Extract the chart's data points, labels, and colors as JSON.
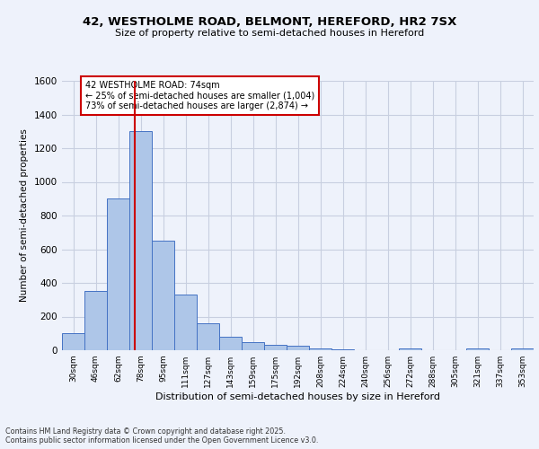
{
  "title": "42, WESTHOLME ROAD, BELMONT, HEREFORD, HR2 7SX",
  "subtitle": "Size of property relative to semi-detached houses in Hereford",
  "xlabel": "Distribution of semi-detached houses by size in Hereford",
  "ylabel": "Number of semi-detached properties",
  "bar_labels": [
    "30sqm",
    "46sqm",
    "62sqm",
    "78sqm",
    "95sqm",
    "111sqm",
    "127sqm",
    "143sqm",
    "159sqm",
    "175sqm",
    "192sqm",
    "208sqm",
    "224sqm",
    "240sqm",
    "256sqm",
    "272sqm",
    "288sqm",
    "305sqm",
    "321sqm",
    "337sqm",
    "353sqm"
  ],
  "bar_values": [
    100,
    350,
    900,
    1300,
    650,
    330,
    160,
    80,
    50,
    30,
    25,
    10,
    5,
    0,
    0,
    10,
    0,
    0,
    10,
    0,
    10
  ],
  "bar_color": "#aec6e8",
  "bar_edge_color": "#4472c4",
  "annotation_title": "42 WESTHOLME ROAD: 74sqm",
  "annotation_line1": "← 25% of semi-detached houses are smaller (1,004)",
  "annotation_line2": "73% of semi-detached houses are larger (2,874) →",
  "annotation_box_color": "#ffffff",
  "annotation_box_edge": "#cc0000",
  "vline_color": "#cc0000",
  "ylim": [
    0,
    1600
  ],
  "yticks": [
    0,
    200,
    400,
    600,
    800,
    1000,
    1200,
    1400,
    1600
  ],
  "footer_line1": "Contains HM Land Registry data © Crown copyright and database right 2025.",
  "footer_line2": "Contains public sector information licensed under the Open Government Licence v3.0.",
  "bg_color": "#eef2fb",
  "grid_color": "#c8cfe0"
}
